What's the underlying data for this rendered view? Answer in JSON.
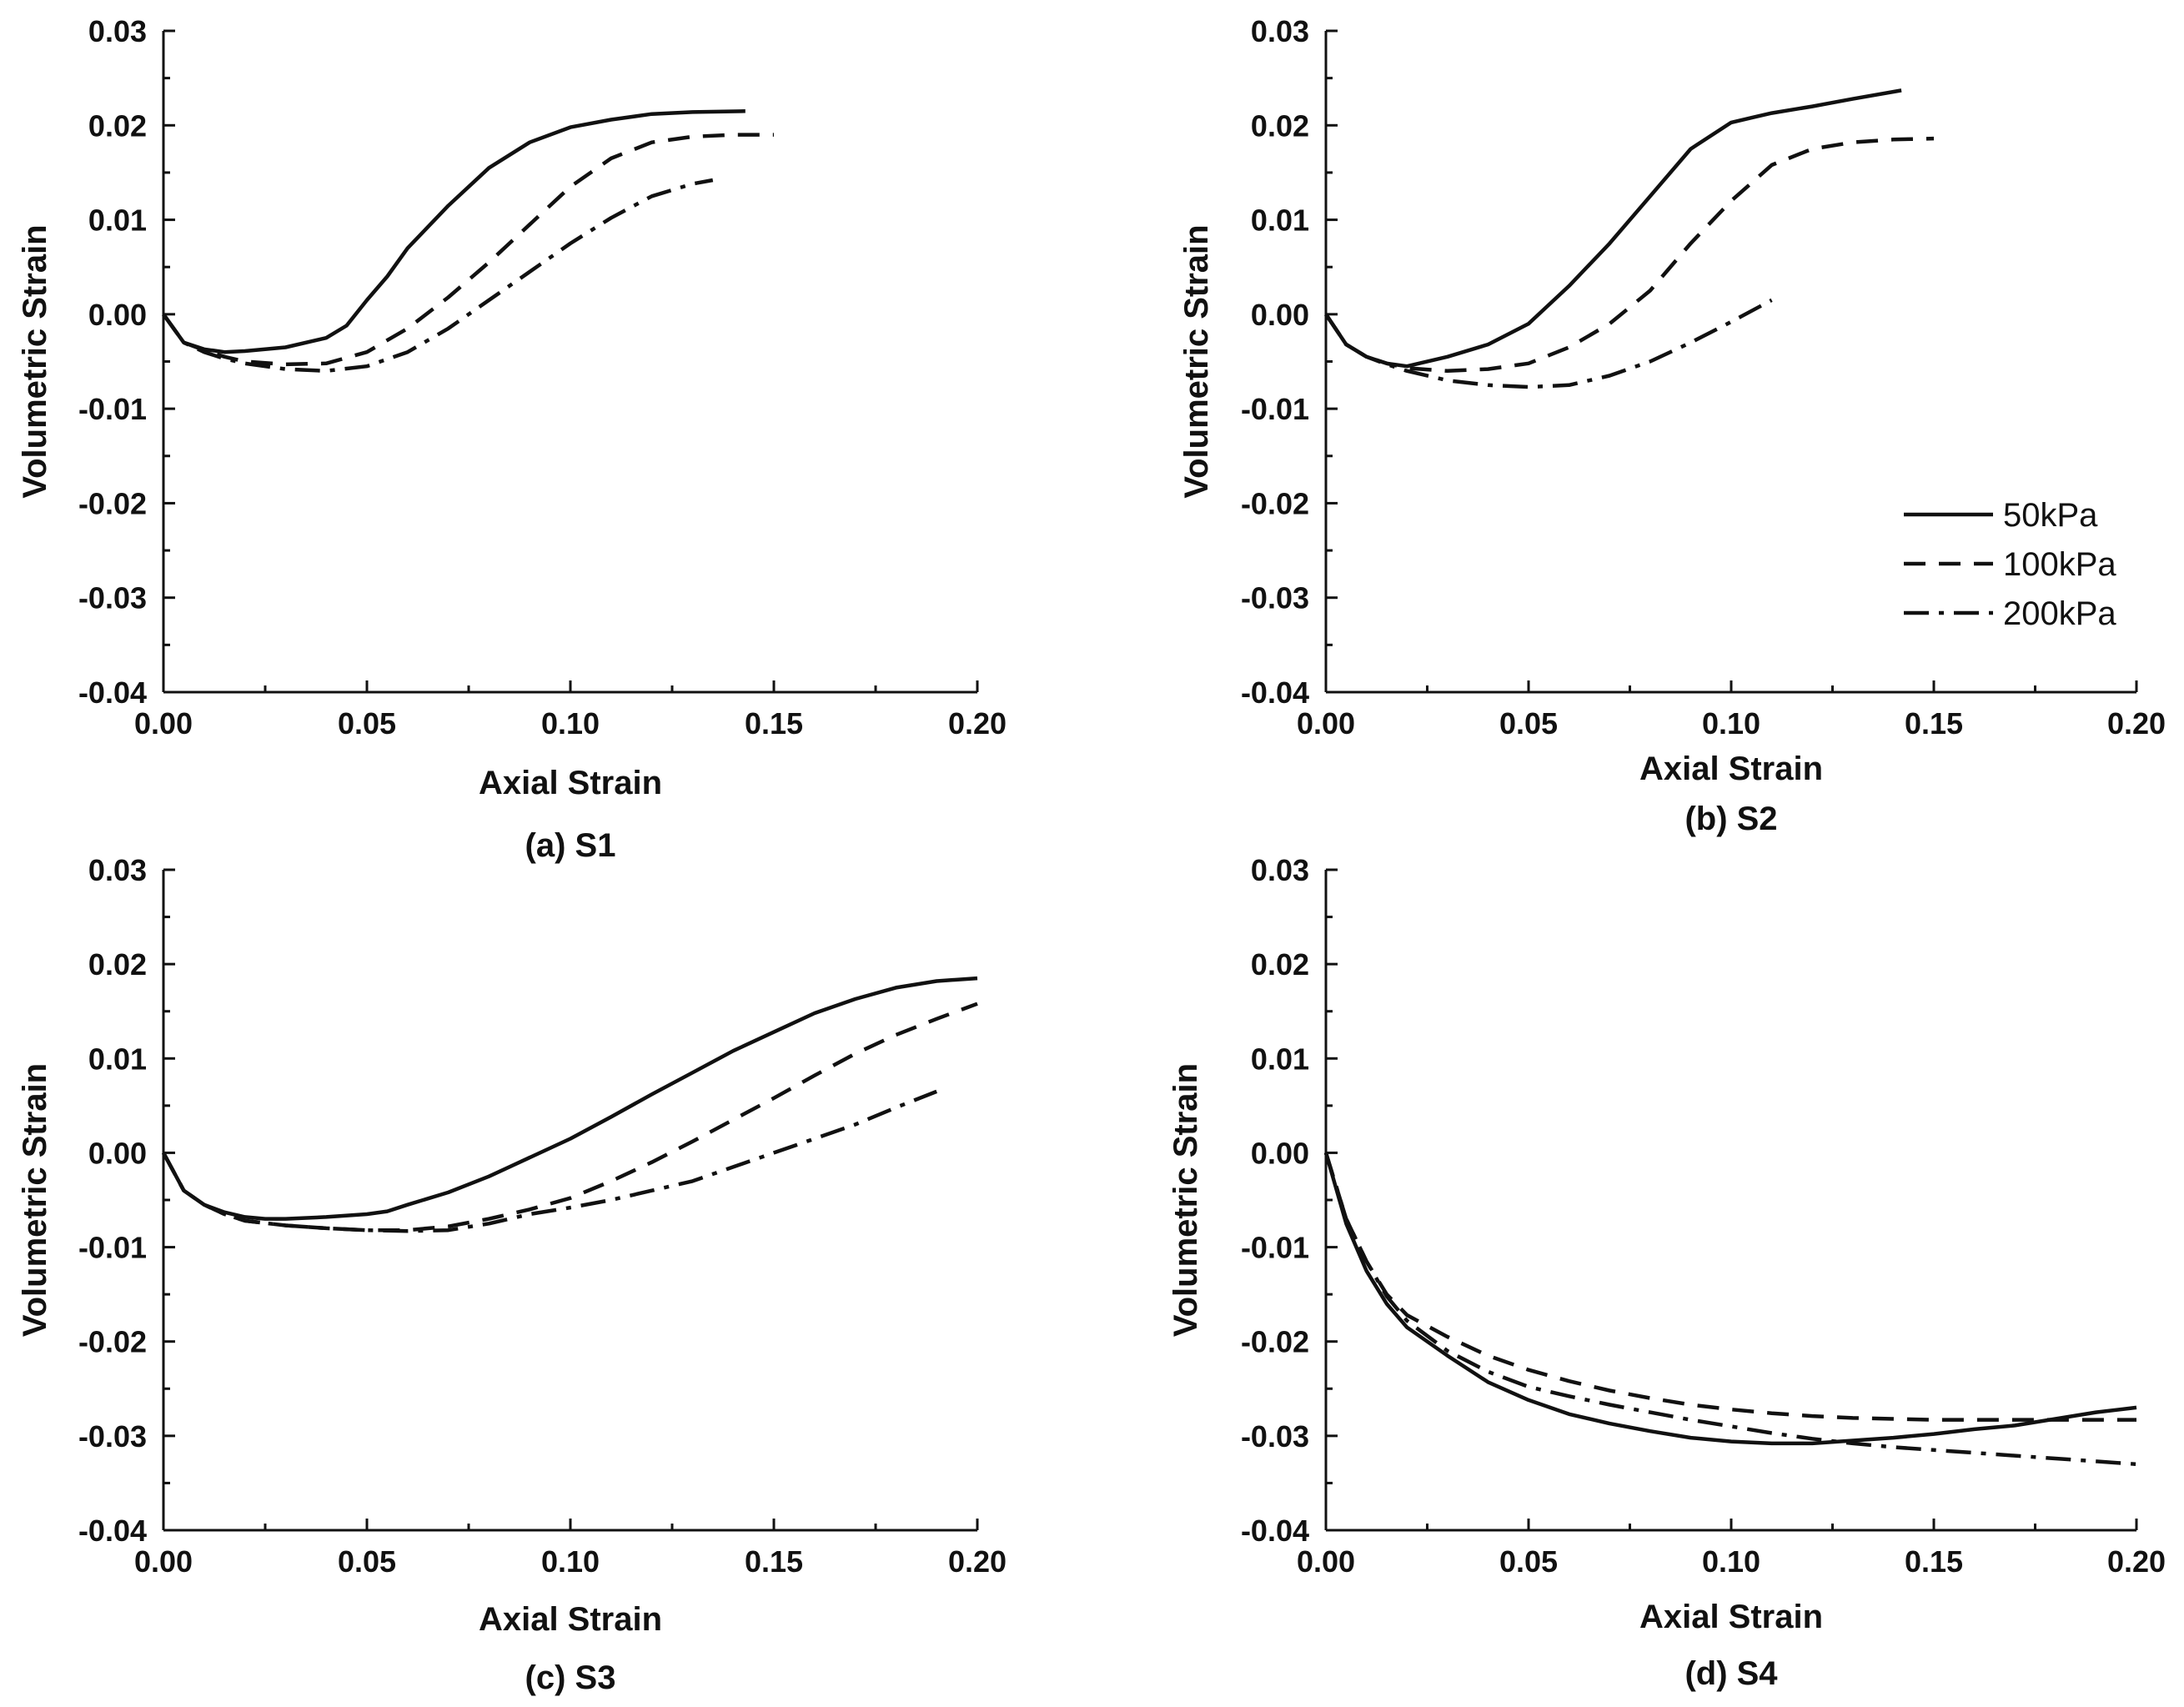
{
  "chart_data": [
    {
      "id": "a",
      "type": "line",
      "caption": "(a) S1",
      "xlabel": "Axial Strain",
      "ylabel": "Volumetric Strain",
      "xlim": [
        0,
        0.2
      ],
      "ylim": [
        -0.04,
        0.03
      ],
      "xticks": [
        "0.00",
        "0.05",
        "0.10",
        "0.15",
        "0.20"
      ],
      "yticks": [
        "0.03",
        "0.02",
        "0.01",
        "0.00",
        "-0.01",
        "-0.02",
        "-0.03",
        "-0.04"
      ],
      "series": [
        {
          "name": "50kPa",
          "style": "solid",
          "x": [
            0,
            0.005,
            0.01,
            0.015,
            0.02,
            0.03,
            0.04,
            0.045,
            0.05,
            0.055,
            0.06,
            0.07,
            0.08,
            0.09,
            0.1,
            0.11,
            0.12,
            0.13,
            0.143
          ],
          "y": [
            0,
            -0.003,
            -0.0037,
            -0.004,
            -0.0039,
            -0.0035,
            -0.0025,
            -0.0012,
            0.0015,
            0.004,
            0.007,
            0.0115,
            0.0155,
            0.0182,
            0.0198,
            0.0206,
            0.0212,
            0.0214,
            0.0215
          ]
        },
        {
          "name": "100kPa",
          "style": "dash",
          "x": [
            0,
            0.005,
            0.01,
            0.015,
            0.02,
            0.03,
            0.04,
            0.05,
            0.06,
            0.07,
            0.08,
            0.09,
            0.1,
            0.11,
            0.12,
            0.13,
            0.14,
            0.15
          ],
          "y": [
            0,
            -0.003,
            -0.0038,
            -0.0045,
            -0.005,
            -0.0053,
            -0.0052,
            -0.004,
            -0.0015,
            0.0018,
            0.0055,
            0.0095,
            0.0135,
            0.0165,
            0.0182,
            0.0188,
            0.019,
            0.019
          ]
        },
        {
          "name": "200kPa",
          "style": "dashdot",
          "x": [
            0,
            0.005,
            0.01,
            0.015,
            0.02,
            0.03,
            0.04,
            0.05,
            0.06,
            0.07,
            0.08,
            0.09,
            0.1,
            0.11,
            0.12,
            0.13,
            0.135
          ],
          "y": [
            0,
            -0.003,
            -0.004,
            -0.0047,
            -0.0052,
            -0.0058,
            -0.006,
            -0.0055,
            -0.004,
            -0.0015,
            0.0015,
            0.0045,
            0.0075,
            0.0102,
            0.0125,
            0.0138,
            0.0142
          ]
        }
      ]
    },
    {
      "id": "b",
      "type": "line",
      "caption": "(b) S2",
      "xlabel": "Axial Strain",
      "ylabel": "Volumetric Strain",
      "xlim": [
        0,
        0.2
      ],
      "ylim": [
        -0.04,
        0.03
      ],
      "xticks": [
        "0.00",
        "0.05",
        "0.10",
        "0.15",
        "0.20"
      ],
      "yticks": [
        "0.03",
        "0.02",
        "0.01",
        "0.00",
        "-0.01",
        "-0.02",
        "-0.03",
        "-0.04"
      ],
      "legend": {
        "position": "center-right",
        "entries": [
          {
            "label": "50kPa",
            "style": "solid"
          },
          {
            "label": "100kPa",
            "style": "dash"
          },
          {
            "label": "200kPa",
            "style": "dashdot"
          }
        ]
      },
      "series": [
        {
          "name": "50kPa",
          "style": "solid",
          "x": [
            0,
            0.005,
            0.01,
            0.015,
            0.02,
            0.03,
            0.04,
            0.05,
            0.06,
            0.07,
            0.08,
            0.09,
            0.1,
            0.105,
            0.11,
            0.12,
            0.13,
            0.142
          ],
          "y": [
            0,
            -0.0032,
            -0.0045,
            -0.0052,
            -0.0055,
            -0.0045,
            -0.0032,
            -0.001,
            0.003,
            0.0075,
            0.0125,
            0.0175,
            0.0203,
            0.0208,
            0.0213,
            0.022,
            0.0228,
            0.0237
          ]
        },
        {
          "name": "100kPa",
          "style": "dash",
          "x": [
            0,
            0.005,
            0.01,
            0.015,
            0.02,
            0.03,
            0.04,
            0.05,
            0.06,
            0.07,
            0.08,
            0.09,
            0.1,
            0.11,
            0.12,
            0.13,
            0.14,
            0.15
          ],
          "y": [
            0,
            -0.0032,
            -0.0045,
            -0.0052,
            -0.0057,
            -0.006,
            -0.0058,
            -0.0052,
            -0.0035,
            -0.001,
            0.0025,
            0.0075,
            0.012,
            0.0158,
            0.0175,
            0.0182,
            0.0185,
            0.0186
          ]
        },
        {
          "name": "200kPa",
          "style": "dashdot",
          "x": [
            0,
            0.005,
            0.01,
            0.015,
            0.02,
            0.03,
            0.04,
            0.05,
            0.06,
            0.07,
            0.08,
            0.09,
            0.1,
            0.11
          ],
          "y": [
            0,
            -0.0032,
            -0.0045,
            -0.0053,
            -0.006,
            -0.007,
            -0.0075,
            -0.0077,
            -0.0075,
            -0.0065,
            -0.005,
            -0.003,
            -0.0008,
            0.0015
          ]
        }
      ]
    },
    {
      "id": "c",
      "type": "line",
      "caption": "(c) S3",
      "xlabel": "Axial Strain",
      "ylabel": "Volumetric Strain",
      "xlim": [
        0,
        0.2
      ],
      "ylim": [
        -0.04,
        0.03
      ],
      "xticks": [
        "0.00",
        "0.05",
        "0.10",
        "0.15",
        "0.20"
      ],
      "yticks": [
        "0.03",
        "0.02",
        "0.01",
        "0.00",
        "-0.01",
        "-0.02",
        "-0.03",
        "-0.04"
      ],
      "series": [
        {
          "name": "50kPa",
          "style": "solid",
          "x": [
            0,
            0.005,
            0.01,
            0.015,
            0.02,
            0.025,
            0.03,
            0.04,
            0.05,
            0.055,
            0.06,
            0.07,
            0.08,
            0.09,
            0.1,
            0.11,
            0.12,
            0.13,
            0.14,
            0.15,
            0.16,
            0.17,
            0.18,
            0.19,
            0.2
          ],
          "y": [
            0,
            -0.004,
            -0.0055,
            -0.0063,
            -0.0068,
            -0.007,
            -0.007,
            -0.0068,
            -0.0065,
            -0.0062,
            -0.0055,
            -0.0042,
            -0.0025,
            -0.0005,
            0.0015,
            0.0038,
            0.0062,
            0.0085,
            0.0108,
            0.0128,
            0.0148,
            0.0163,
            0.0175,
            0.0182,
            0.0185
          ]
        },
        {
          "name": "100kPa",
          "style": "dash",
          "x": [
            0,
            0.005,
            0.01,
            0.015,
            0.02,
            0.03,
            0.04,
            0.05,
            0.06,
            0.07,
            0.08,
            0.09,
            0.1,
            0.11,
            0.12,
            0.13,
            0.14,
            0.15,
            0.16,
            0.17,
            0.18,
            0.19,
            0.2
          ],
          "y": [
            0,
            -0.004,
            -0.0055,
            -0.0065,
            -0.0072,
            -0.0077,
            -0.008,
            -0.0082,
            -0.0082,
            -0.0078,
            -0.007,
            -0.006,
            -0.0048,
            -0.003,
            -0.001,
            0.0012,
            0.0035,
            0.0058,
            0.0082,
            0.0105,
            0.0125,
            0.0142,
            0.0158
          ]
        },
        {
          "name": "200kPa",
          "style": "dashdot",
          "x": [
            0,
            0.005,
            0.01,
            0.015,
            0.02,
            0.03,
            0.04,
            0.05,
            0.06,
            0.07,
            0.08,
            0.09,
            0.1,
            0.11,
            0.12,
            0.13,
            0.14,
            0.15,
            0.16,
            0.17,
            0.18,
            0.19
          ],
          "y": [
            0,
            -0.004,
            -0.0055,
            -0.0065,
            -0.0072,
            -0.0077,
            -0.008,
            -0.0082,
            -0.0083,
            -0.0082,
            -0.0075,
            -0.0065,
            -0.0058,
            -0.005,
            -0.004,
            -0.003,
            -0.0015,
            0,
            0.0015,
            0.003,
            0.0048,
            0.0065
          ]
        }
      ]
    },
    {
      "id": "d",
      "type": "line",
      "caption": "(d) S4",
      "xlabel": "Axial Strain",
      "ylabel": "Volumetric Strain",
      "xlim": [
        0,
        0.2
      ],
      "ylim": [
        -0.04,
        0.03
      ],
      "xticks": [
        "0.00",
        "0.05",
        "0.10",
        "0.15",
        "0.20"
      ],
      "yticks": [
        "0.03",
        "0.02",
        "0.01",
        "0.00",
        "-0.01",
        "-0.02",
        "-0.03",
        "-0.04"
      ],
      "series": [
        {
          "name": "50kPa",
          "style": "solid",
          "x": [
            0,
            0.005,
            0.01,
            0.015,
            0.02,
            0.03,
            0.04,
            0.05,
            0.06,
            0.07,
            0.08,
            0.09,
            0.1,
            0.11,
            0.12,
            0.13,
            0.14,
            0.15,
            0.16,
            0.17,
            0.18,
            0.19,
            0.2
          ],
          "y": [
            0,
            -0.0075,
            -0.0125,
            -0.016,
            -0.0185,
            -0.0215,
            -0.0243,
            -0.0262,
            -0.0277,
            -0.0287,
            -0.0295,
            -0.0302,
            -0.0306,
            -0.0308,
            -0.0308,
            -0.0305,
            -0.0302,
            -0.0298,
            -0.0293,
            -0.0289,
            -0.0282,
            -0.0275,
            -0.027
          ]
        },
        {
          "name": "100kPa",
          "style": "dash",
          "x": [
            0,
            0.005,
            0.01,
            0.015,
            0.02,
            0.03,
            0.04,
            0.05,
            0.06,
            0.07,
            0.08,
            0.09,
            0.1,
            0.11,
            0.12,
            0.13,
            0.14,
            0.15,
            0.16,
            0.17,
            0.18,
            0.19,
            0.2
          ],
          "y": [
            0,
            -0.007,
            -0.0115,
            -0.015,
            -0.0172,
            -0.0195,
            -0.0215,
            -0.023,
            -0.0242,
            -0.0252,
            -0.026,
            -0.0267,
            -0.0272,
            -0.0276,
            -0.0279,
            -0.0281,
            -0.0282,
            -0.0283,
            -0.0283,
            -0.0283,
            -0.0283,
            -0.0283,
            -0.0283
          ]
        },
        {
          "name": "200kPa",
          "style": "dashdot",
          "x": [
            0,
            0.005,
            0.01,
            0.015,
            0.02,
            0.03,
            0.04,
            0.05,
            0.06,
            0.07,
            0.08,
            0.09,
            0.1,
            0.11,
            0.12,
            0.13,
            0.14,
            0.15,
            0.16,
            0.17,
            0.18,
            0.19,
            0.2
          ],
          "y": [
            0,
            -0.007,
            -0.0115,
            -0.0152,
            -0.0178,
            -0.021,
            -0.0232,
            -0.0248,
            -0.0258,
            -0.0267,
            -0.0275,
            -0.0283,
            -0.029,
            -0.0297,
            -0.0303,
            -0.0308,
            -0.0312,
            -0.0315,
            -0.0318,
            -0.0321,
            -0.0324,
            -0.0327,
            -0.033
          ]
        }
      ]
    }
  ]
}
